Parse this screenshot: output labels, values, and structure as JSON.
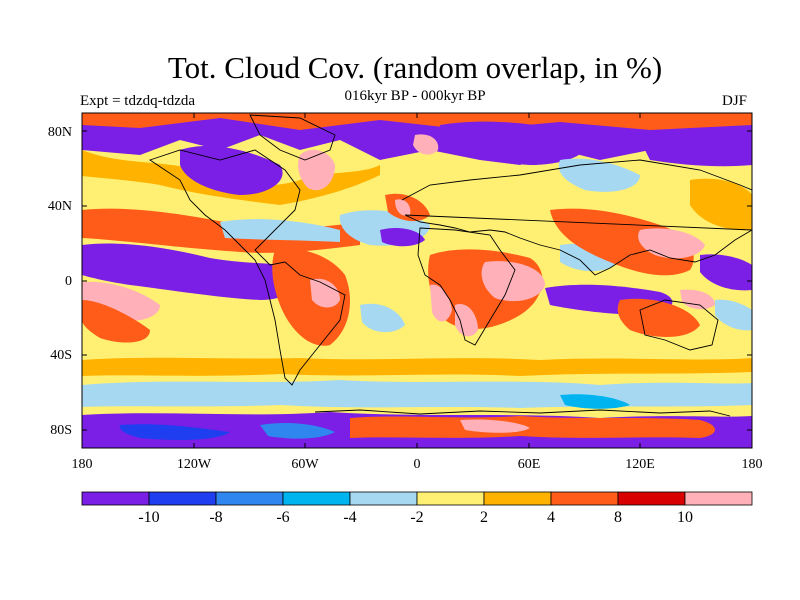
{
  "title": "Tot. Cloud Cov. (random overlap, in %)",
  "subtitle": "016kyr BP - 000kyr BP",
  "experiment": "Expt = tdzdq-tdzda",
  "season": "DJF",
  "lat_ticks": [
    "80N",
    "40N",
    "0",
    "40S",
    "80S"
  ],
  "lon_ticks": [
    "180",
    "120W",
    "60W",
    "0",
    "60E",
    "120E",
    "180"
  ],
  "legend": {
    "colors": [
      "#7b1ee6",
      "#1f3ef0",
      "#2e86ee",
      "#00b4f0",
      "#a6d8f2",
      "#fff073",
      "#ffb300",
      "#ff5c1a",
      "#d80000",
      "#ffb0b8"
    ],
    "labels": [
      "-10",
      "-8",
      "-6",
      "-4",
      "-2",
      "2",
      "4",
      "8",
      "10"
    ]
  },
  "regions": {
    "background": "#fff073",
    "light_blue": "#a6d8f2",
    "cyan": "#00b4f0",
    "orange": "#ffb300",
    "red_orange": "#ff5c1a",
    "red": "#d80000",
    "pink": "#ffb0b8",
    "purple": "#7b1ee6",
    "blue": "#1f3ef0",
    "mid_blue": "#2e86ee"
  }
}
